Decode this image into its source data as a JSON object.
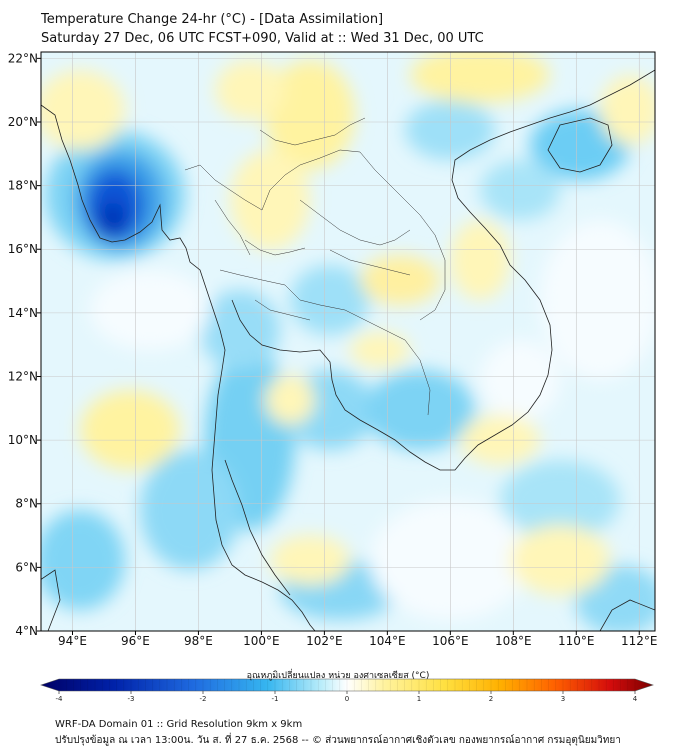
{
  "header": {
    "title": "Temperature Change 24-hr (°C) - [Data Assimilation]",
    "subtitle": "Saturday 27 Dec, 06 UTC FCST+090, Valid at :: Wed 31 Dec, 00 UTC"
  },
  "map": {
    "lon_range": [
      93,
      112.5
    ],
    "lat_range": [
      4,
      22.2
    ],
    "lat_ticks": [
      "4°N",
      "6°N",
      "8°N",
      "10°N",
      "12°N",
      "14°N",
      "16°N",
      "18°N",
      "20°N",
      "22°N"
    ],
    "lon_ticks": [
      "94°E",
      "96°E",
      "98°E",
      "100°E",
      "102°E",
      "104°E",
      "106°E",
      "108°E",
      "110°E",
      "112°E"
    ],
    "grid": true,
    "field_description_colors": {
      "cold": "#1f6be0",
      "neutral": "#ffffff",
      "warm": "#fff3a0"
    }
  },
  "colorbar": {
    "label": "อุณหภูมิเปลี่ยนแปลง หน่วย องศาเซลเซียส (°C)",
    "ticks": [
      "-4",
      "-3",
      "-2",
      "-1",
      "0",
      "1",
      "2",
      "3",
      "4"
    ],
    "min": -4,
    "max": 4,
    "colors": [
      "#000066",
      "#0033cc",
      "#1f6be0",
      "#36b6f0",
      "#bdeefa",
      "#ffffff",
      "#fff3a0",
      "#ffc400",
      "#ff7000",
      "#e01010",
      "#7a0000"
    ]
  },
  "footer": {
    "line1": "WRF-DA Domain 01 :: Grid Resolution 9km x 9km",
    "line2": "ปรับปรุงข้อมูล ณ เวลา 13:00น. วัน ส. ที่ 27 ธ.ค. 2568 -- © ส่วนพยากรณ์อากาศเชิงตัวเลข กองพยากรณ์อากาศ กรมอุตุนิยมวิทยา"
  }
}
